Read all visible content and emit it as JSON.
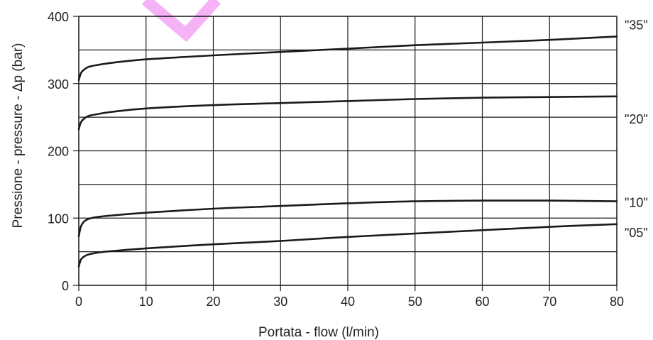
{
  "chart_data": {
    "type": "line",
    "title": "",
    "xlabel": "Portata - flow (l/min)",
    "ylabel": "Pressione - pressure - Δp (bar)",
    "xlim": [
      0,
      80
    ],
    "ylim": [
      0,
      400
    ],
    "x_ticks": [
      0,
      10,
      20,
      30,
      40,
      50,
      60,
      70,
      80
    ],
    "y_ticks": [
      0,
      100,
      200,
      300,
      400
    ],
    "extra_y_gridlines": [
      50,
      150,
      250,
      350
    ],
    "grid": true,
    "legend": "none",
    "series": [
      {
        "name": "\"35\"",
        "x": [
          0,
          0.3,
          0.8,
          1.5,
          3,
          5,
          10,
          20,
          30,
          40,
          50,
          60,
          70,
          80
        ],
        "y": [
          305,
          315,
          321,
          325,
          328,
          331,
          336,
          342,
          347,
          352,
          357,
          361,
          365,
          370
        ]
      },
      {
        "name": "\"20\"",
        "x": [
          0,
          0.3,
          0.8,
          1.5,
          3,
          5,
          10,
          20,
          30,
          40,
          50,
          60,
          70,
          80
        ],
        "y": [
          232,
          242,
          248,
          252,
          255,
          258,
          263,
          268,
          271,
          274,
          277,
          279,
          280,
          281
        ]
      },
      {
        "name": "\"10\"",
        "x": [
          0,
          0.3,
          0.8,
          1.5,
          3,
          5,
          10,
          20,
          30,
          40,
          50,
          60,
          70,
          80
        ],
        "y": [
          73,
          87,
          95,
          99,
          102,
          104,
          108,
          114,
          118,
          122,
          125,
          126,
          126,
          125
        ]
      },
      {
        "name": "\"05\"",
        "x": [
          0,
          0.3,
          0.8,
          1.5,
          3,
          5,
          10,
          20,
          30,
          40,
          50,
          60,
          70,
          80
        ],
        "y": [
          28,
          38,
          43,
          46,
          49,
          51,
          55,
          61,
          66,
          72,
          77,
          82,
          87,
          91
        ]
      }
    ]
  },
  "watermark": {
    "color": "#f3a6f3"
  }
}
